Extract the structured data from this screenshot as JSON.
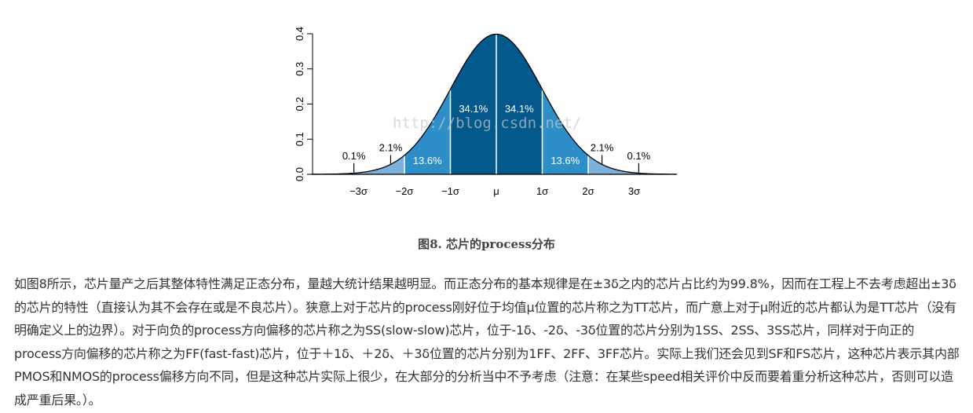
{
  "chart_data": {
    "type": "area",
    "distribution": "normal",
    "ylim": [
      0,
      0.4
    ],
    "yticks": [
      "0.0",
      "0.1",
      "0.2",
      "0.3",
      "0.4"
    ],
    "xticks": [
      {
        "x": -3,
        "label": "−3σ"
      },
      {
        "x": -2,
        "label": "−2σ"
      },
      {
        "x": -1,
        "label": "−1σ"
      },
      {
        "x": 0,
        "label": "μ"
      },
      {
        "x": 1,
        "label": "1σ"
      },
      {
        "x": 2,
        "label": "2σ"
      },
      {
        "x": 3,
        "label": "3σ"
      }
    ],
    "regions": [
      {
        "from": -4,
        "to": -2,
        "color": "#7fb0d9"
      },
      {
        "from": -2,
        "to": -1,
        "color": "#2e8fc8"
      },
      {
        "from": -1,
        "to": 0,
        "color": "#03588c"
      },
      {
        "from": 0,
        "to": 1,
        "color": "#03588c"
      },
      {
        "from": 1,
        "to": 2,
        "color": "#2e8fc8"
      },
      {
        "from": 2,
        "to": 4,
        "color": "#7fb0d9"
      }
    ],
    "annotations": [
      {
        "x": -3.1,
        "y": 0.005,
        "label": "0.1%",
        "position": "outside"
      },
      {
        "x": -2.3,
        "y": 0.028,
        "label": "2.1%",
        "position": "outside"
      },
      {
        "x": -1.5,
        "label": "13.6%",
        "position": "inside"
      },
      {
        "x": -0.5,
        "label": "34.1%",
        "position": "inside"
      },
      {
        "x": 0.5,
        "label": "34.1%",
        "position": "inside"
      },
      {
        "x": 1.5,
        "label": "13.6%",
        "position": "inside"
      },
      {
        "x": 2.3,
        "y": 0.028,
        "label": "2.1%",
        "position": "outside"
      },
      {
        "x": 3.1,
        "y": 0.005,
        "label": "0.1%",
        "position": "outside"
      }
    ],
    "colors": {
      "outline": "#000000",
      "divider": "#ffffff",
      "inside_label": "#ffffff"
    },
    "watermark": "http://blog.csdn.net/"
  },
  "caption": "图8. 芯片的process分布",
  "paragraph": "如图8所示，芯片量产之后其整体特性满足正态分布，量越大统计结果越明显。而正态分布的基本规律是在±3δ之内的芯片占比约为99.8%，因而在工程上不去考虑超出±3δ的芯片的特性（直接认为其不会存在或是不良芯片）。狭意上对于芯片的process刚好位于均值μ位置的芯片称之为TT芯片，而广意上对于μ附近的芯片都认为是TT芯片（没有明确定义上的边界）。对于向负的process方向偏移的芯片称之为SS(slow-slow)芯片，位于-1δ、-2δ、-3δ位置的芯片分别为1SS、2SS、3SS芯片，同样对于向正的process方向偏移的芯片称之为FF(fast-fast)芯片，位于＋1δ、＋2δ、＋3δ位置的芯片分别为1FF、2FF、3FF芯片。实际上我们还会见到SF和FS芯片，这种芯片表示其内部PMOS和NMOS的process偏移方向不同，但是这种芯片实际上很少，在大部分的分析当中不予考虑（注意：在某些speed相关评价中反而要着重分析这种芯片，否则可以造成严重后果。）。"
}
